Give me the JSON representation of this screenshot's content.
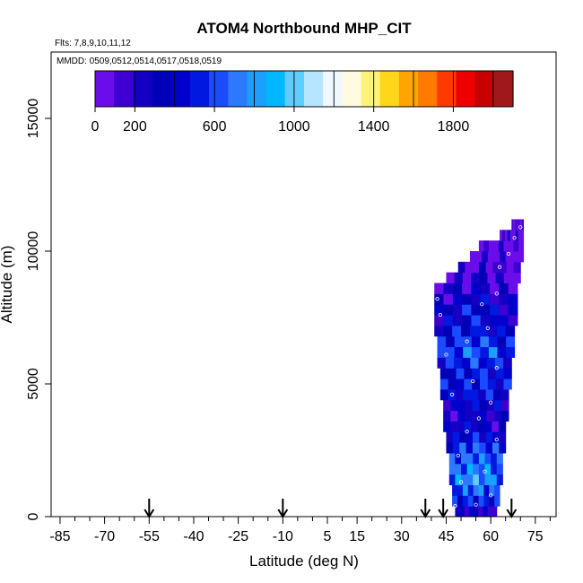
{
  "chart_data": {
    "type": "heatmap",
    "title": "ATOM4 Northbound MHP_CIT",
    "flights_label": "Flts: 7,8,9,10,11,12",
    "dates_label": "MMDD: 0509,0512,0514,0517,0518,0519",
    "xlabel": "Latitude (deg N)",
    "ylabel": "Altitude (m)",
    "xlim": [
      -88,
      82
    ],
    "ylim": [
      0,
      17500
    ],
    "x_ticks": [
      "-85",
      "-70",
      "-55",
      "-40",
      "-25",
      "-10",
      "5",
      "15",
      "30",
      "45",
      "60",
      "75"
    ],
    "x_tick_values": [
      -85,
      -70,
      -55,
      -40,
      -25,
      -10,
      5,
      15,
      30,
      45,
      60,
      75
    ],
    "y_ticks": [
      "0",
      "5000",
      "10000",
      "15000"
    ],
    "y_tick_values": [
      0,
      5000,
      10000,
      15000
    ],
    "colorbar": {
      "min": 0,
      "max": 2100,
      "tick_labels": [
        "0",
        "200",
        "600",
        "1000",
        "1400",
        "1800"
      ],
      "tick_values": [
        0,
        200,
        600,
        1000,
        1400,
        1800
      ],
      "colors": [
        "#6a0dea",
        "#3d00d0",
        "#1400c4",
        "#0000b8",
        "#0000cc",
        "#0018e0",
        "#1a4bff",
        "#2c78ff",
        "#1aa0ff",
        "#00b8ff",
        "#60cdff",
        "#b6e6ff",
        "#eef9ff",
        "#fffae0",
        "#fff27a",
        "#ffd61a",
        "#ffa500",
        "#ff7a00",
        "#ff3a00",
        "#ee0000",
        "#c80000",
        "#a01818"
      ]
    },
    "arrows_latitude": [
      -55,
      -10,
      38,
      44,
      67
    ],
    "profile_rows": [
      {
        "alt": 200,
        "lat_min": 48,
        "lat_max": 62,
        "value": 280
      },
      {
        "alt": 600,
        "lat_min": 47,
        "lat_max": 63,
        "value": 500
      },
      {
        "alt": 1000,
        "lat_min": 47,
        "lat_max": 63,
        "value": 620
      },
      {
        "alt": 1400,
        "lat_min": 46,
        "lat_max": 64,
        "value": 760
      },
      {
        "alt": 1800,
        "lat_min": 46,
        "lat_max": 64,
        "value": 700
      },
      {
        "alt": 2200,
        "lat_min": 46,
        "lat_max": 64,
        "value": 640
      },
      {
        "alt": 2600,
        "lat_min": 45,
        "lat_max": 65,
        "value": 560
      },
      {
        "alt": 3000,
        "lat_min": 45,
        "lat_max": 65,
        "value": 420
      },
      {
        "alt": 3400,
        "lat_min": 44,
        "lat_max": 65,
        "value": 300
      },
      {
        "alt": 3800,
        "lat_min": 44,
        "lat_max": 66,
        "value": 260
      },
      {
        "alt": 4200,
        "lat_min": 44,
        "lat_max": 66,
        "value": 340
      },
      {
        "alt": 4600,
        "lat_min": 43,
        "lat_max": 66,
        "value": 420
      },
      {
        "alt": 5000,
        "lat_min": 43,
        "lat_max": 67,
        "value": 480
      },
      {
        "alt": 5400,
        "lat_min": 43,
        "lat_max": 67,
        "value": 460
      },
      {
        "alt": 5800,
        "lat_min": 42,
        "lat_max": 67,
        "value": 520
      },
      {
        "alt": 6200,
        "lat_min": 42,
        "lat_max": 68,
        "value": 600
      },
      {
        "alt": 6600,
        "lat_min": 42,
        "lat_max": 68,
        "value": 520
      },
      {
        "alt": 7000,
        "lat_min": 41,
        "lat_max": 68,
        "value": 440
      },
      {
        "alt": 7400,
        "lat_min": 41,
        "lat_max": 69,
        "value": 360
      },
      {
        "alt": 7800,
        "lat_min": 41,
        "lat_max": 69,
        "value": 380
      },
      {
        "alt": 8200,
        "lat_min": 41,
        "lat_max": 69,
        "value": 300
      },
      {
        "alt": 8600,
        "lat_min": 41,
        "lat_max": 69,
        "value": 200
      },
      {
        "alt": 9000,
        "lat_min": 45,
        "lat_max": 70,
        "value": 140
      },
      {
        "alt": 9400,
        "lat_min": 49,
        "lat_max": 70,
        "value": 100
      },
      {
        "alt": 9800,
        "lat_min": 53,
        "lat_max": 71,
        "value": 60
      },
      {
        "alt": 10200,
        "lat_min": 56,
        "lat_max": 71,
        "value": 40
      },
      {
        "alt": 10600,
        "lat_min": 63,
        "lat_max": 71,
        "value": 30
      },
      {
        "alt": 11000,
        "lat_min": 67,
        "lat_max": 71,
        "value": 20
      }
    ],
    "sample_points": [
      {
        "lat": 48,
        "alt": 400
      },
      {
        "lat": 55,
        "alt": 450
      },
      {
        "lat": 60,
        "alt": 800
      },
      {
        "lat": 50,
        "alt": 1300
      },
      {
        "lat": 58,
        "alt": 1700
      },
      {
        "lat": 49,
        "alt": 2300
      },
      {
        "lat": 62,
        "alt": 2900
      },
      {
        "lat": 52,
        "alt": 3200
      },
      {
        "lat": 56,
        "alt": 3700
      },
      {
        "lat": 60,
        "alt": 4300
      },
      {
        "lat": 47,
        "alt": 4600
      },
      {
        "lat": 54,
        "alt": 5100
      },
      {
        "lat": 62,
        "alt": 5600
      },
      {
        "lat": 45,
        "alt": 6100
      },
      {
        "lat": 52,
        "alt": 6600
      },
      {
        "lat": 59,
        "alt": 7100
      },
      {
        "lat": 43,
        "alt": 7600
      },
      {
        "lat": 57,
        "alt": 8000
      },
      {
        "lat": 42,
        "alt": 8200
      },
      {
        "lat": 62,
        "alt": 8400
      },
      {
        "lat": 63,
        "alt": 9400
      },
      {
        "lat": 66,
        "alt": 9900
      },
      {
        "lat": 68,
        "alt": 10500
      },
      {
        "lat": 70,
        "alt": 10900
      }
    ]
  }
}
